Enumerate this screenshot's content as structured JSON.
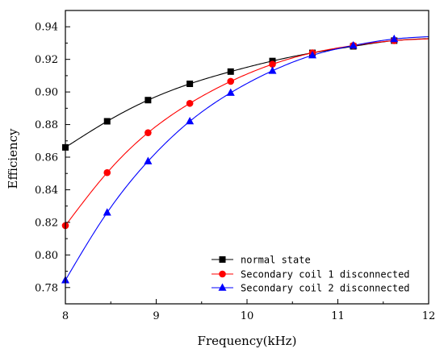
{
  "chart_data": {
    "type": "line",
    "xlabel": "Frequency(kHz)",
    "ylabel": "Efficiency",
    "xlim": [
      8,
      12
    ],
    "ylim": [
      0.77,
      0.95
    ],
    "xticks": [
      8,
      9,
      10,
      11,
      12
    ],
    "yticks": [
      0.78,
      0.8,
      0.82,
      0.84,
      0.86,
      0.88,
      0.9,
      0.92,
      0.94
    ],
    "grid": false,
    "legend_position": "bottom-right",
    "series": [
      {
        "name": "normal state",
        "color": "#000000",
        "marker": "square",
        "x": [
          8.0,
          8.46,
          8.91,
          9.37,
          9.82,
          10.28,
          10.72,
          11.17,
          11.62
        ],
        "y": [
          0.866,
          0.882,
          0.895,
          0.905,
          0.9125,
          0.919,
          0.924,
          0.928,
          0.9315
        ]
      },
      {
        "name": "Secondary coil 1 disconnected",
        "color": "#ff0000",
        "marker": "circle",
        "x": [
          8.0,
          8.46,
          8.91,
          9.37,
          9.82,
          10.28,
          10.72,
          11.17,
          11.62
        ],
        "y": [
          0.818,
          0.8505,
          0.875,
          0.893,
          0.9065,
          0.917,
          0.924,
          0.9285,
          0.9315
        ]
      },
      {
        "name": "Secondary coil 2 disconnected",
        "color": "#0000ff",
        "marker": "triangle",
        "x": [
          8.0,
          8.46,
          8.91,
          9.37,
          9.82,
          10.28,
          10.72,
          11.17,
          11.62
        ],
        "y": [
          0.7845,
          0.826,
          0.8575,
          0.882,
          0.8995,
          0.913,
          0.9225,
          0.9285,
          0.9325
        ]
      }
    ]
  }
}
